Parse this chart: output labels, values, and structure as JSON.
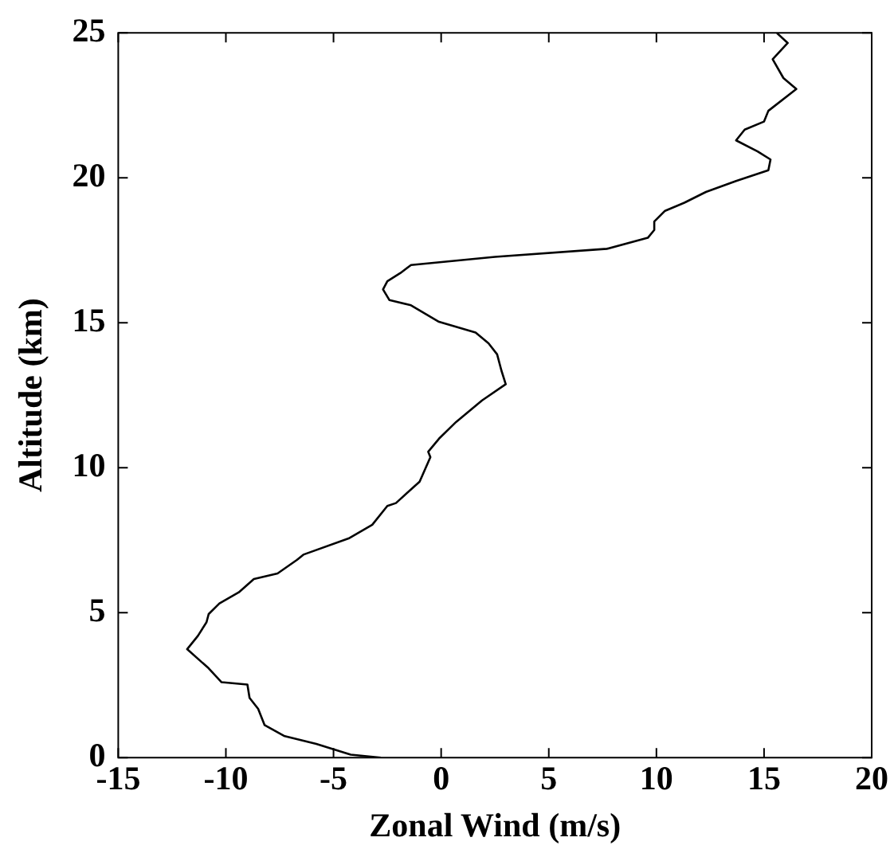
{
  "chart_data": {
    "type": "line",
    "xlabel": "Zonal Wind (m/s)",
    "ylabel": "Altitude (km)",
    "xlim": [
      -15,
      20
    ],
    "xticks": [
      -15,
      -10,
      -5,
      0,
      5,
      10,
      15,
      20
    ],
    "ylim": [
      0,
      25
    ],
    "yticks": [
      0,
      5,
      10,
      15,
      20,
      25
    ],
    "grid": false,
    "legend": false,
    "marker": "none",
    "line_style": "solid",
    "series": [
      {
        "color": "#000000",
        "x": [
          -2.8,
          -4.2,
          -5.8,
          -7.3,
          -8.2,
          -8.5,
          -8.9,
          -9.0,
          -10.2,
          -10.8,
          -11.8,
          -11.3,
          -10.9,
          -10.8,
          -10.3,
          -9.4,
          -8.7,
          -7.6,
          -6.7,
          -6.4,
          -4.3,
          -3.2,
          -2.5,
          -2.1,
          -1.0,
          -0.5,
          -0.6,
          -0.1,
          0.7,
          1.9,
          3.0,
          2.8,
          2.6,
          2.2,
          1.6,
          -0.1,
          -1.4,
          -2.4,
          -2.7,
          -2.5,
          -1.9,
          -1.4,
          2.5,
          7.7,
          9.6,
          9.9,
          9.9,
          10.4,
          11.3,
          12.3,
          13.7,
          15.2,
          15.3,
          14.7,
          13.7,
          14.1,
          15.0,
          15.2,
          16.5,
          15.9,
          15.4,
          16.1,
          15.6
        ],
        "values": [
          0,
          0.1,
          0.47,
          0.75,
          1.12,
          1.68,
          2.06,
          2.52,
          2.6,
          3.08,
          3.74,
          4.2,
          4.67,
          4.95,
          5.32,
          5.7,
          6.16,
          6.35,
          6.82,
          7.0,
          7.56,
          8.03,
          8.68,
          8.78,
          9.52,
          10.36,
          10.55,
          11.0,
          11.58,
          12.32,
          12.88,
          13.35,
          13.91,
          14.29,
          14.66,
          15.03,
          15.6,
          15.78,
          16.15,
          16.43,
          16.71,
          16.99,
          17.27,
          17.55,
          17.93,
          18.2,
          18.49,
          18.86,
          19.14,
          19.51,
          19.89,
          20.26,
          20.63,
          20.91,
          21.29,
          21.66,
          21.94,
          22.31,
          23.06,
          23.44,
          24.09,
          24.65,
          24.99
        ]
      }
    ]
  }
}
